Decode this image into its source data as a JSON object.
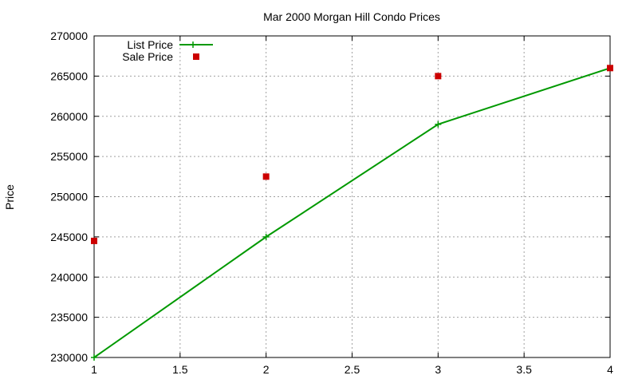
{
  "chart_data": {
    "type": "line",
    "title": "Mar 2000 Morgan Hill Condo Prices",
    "xlabel": "",
    "ylabel": "Price",
    "xlim": [
      1,
      4
    ],
    "ylim": [
      230000,
      270000
    ],
    "xticks": [
      "1",
      "1.5",
      "2",
      "2.5",
      "3",
      "3.5",
      "4"
    ],
    "yticks": [
      "230000",
      "235000",
      "240000",
      "245000",
      "250000",
      "255000",
      "260000",
      "265000",
      "270000"
    ],
    "grid": true,
    "legend_position": "top-left",
    "series": [
      {
        "name": "List Price",
        "style": "linespoints",
        "color": "#009900",
        "x": [
          1,
          2,
          3,
          4
        ],
        "values": [
          230000,
          245000,
          259000,
          266000
        ]
      },
      {
        "name": "Sale Price",
        "style": "points",
        "color": "#cc0000",
        "x": [
          1,
          2,
          3,
          4
        ],
        "values": [
          244500,
          252500,
          265000,
          266000
        ]
      }
    ]
  }
}
